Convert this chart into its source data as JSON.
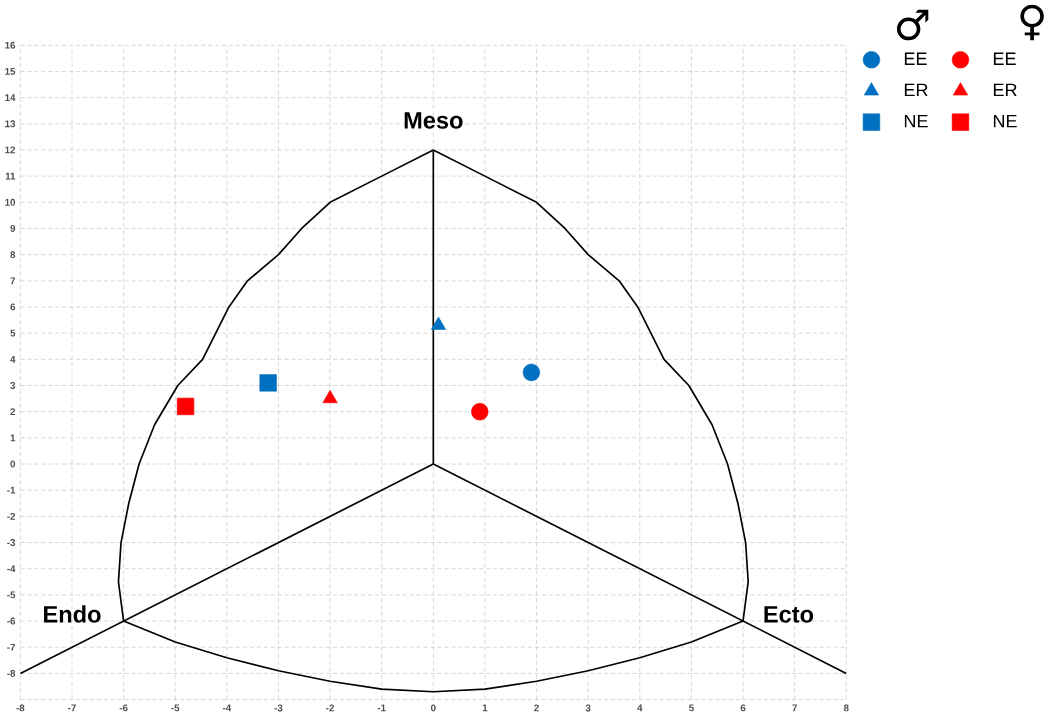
{
  "chart_data": {
    "type": "scatter",
    "xlim": [
      -8,
      8
    ],
    "ylim": [
      -9,
      16
    ],
    "xticks": [
      -8,
      -7,
      -6,
      -5,
      -4,
      -3,
      -2,
      -1,
      0,
      1,
      2,
      3,
      4,
      5,
      6,
      7,
      8
    ],
    "yticks": [
      {
        "value": -9,
        "label": null
      },
      -8,
      -7,
      -6,
      -5,
      -4,
      -3,
      -2,
      -1,
      0,
      1,
      2,
      3,
      4,
      5,
      6,
      7,
      8,
      9,
      10,
      11,
      12,
      13,
      14,
      15,
      16
    ],
    "grid": true,
    "legend": "top right",
    "annotations": [
      "♂",
      "♀",
      "Meso",
      "Endo",
      "Ecto"
    ],
    "series": [
      {
        "name": "EE",
        "color": "#0070c0",
        "marker": "circle",
        "x": [
          1.9
        ],
        "values": [
          3.5
        ]
      },
      {
        "name": "EE",
        "color": "#ff0000",
        "marker": "circle",
        "x": [
          0.9
        ],
        "values": [
          2.0
        ]
      },
      {
        "name": "ER",
        "color": "#0070c0",
        "marker": "triangle",
        "x": [
          0.1
        ],
        "values": [
          5.3
        ]
      },
      {
        "name": "ER",
        "color": "#ff0000",
        "marker": "triangle",
        "x": [
          -2.0
        ],
        "values": [
          2.5
        ]
      },
      {
        "name": "NE",
        "color": "#0070c0",
        "marker": "square",
        "x": [
          -3.2
        ],
        "values": [
          3.1
        ]
      },
      {
        "name": "NE",
        "color": "#ff0000",
        "marker": "square",
        "x": [
          -4.8
        ],
        "values": [
          2.2
        ]
      },
      {
        "type": "line",
        "color": "#000000",
        "marker": "none",
        "x": [
          0,
          0
        ],
        "values": [
          0,
          12
        ]
      },
      {
        "type": "line",
        "color": "#000000",
        "marker": "none",
        "x": [
          0,
          -8
        ],
        "values": [
          0,
          -8
        ]
      },
      {
        "type": "line",
        "color": "#000000",
        "marker": "none",
        "x": [
          0,
          8
        ],
        "values": [
          0,
          -8
        ]
      },
      {
        "type": "line",
        "color": "#000000",
        "marker": "none",
        "x": [
          -6,
          -6.1,
          -6.05,
          -5.9,
          -5.7,
          -5.4,
          -4.95,
          -4.47,
          -3.96,
          -3.6,
          -3.0,
          -2.55,
          -2.0,
          -1.0,
          0
        ],
        "values": [
          -6,
          -4.5,
          -3,
          -1.5,
          0,
          1.5,
          3,
          4,
          6,
          7,
          8,
          9,
          10,
          11,
          12
        ]
      },
      {
        "type": "line",
        "color": "#000000",
        "marker": "none",
        "x": [
          6,
          6.1,
          6.05,
          5.9,
          5.7,
          5.4,
          4.95,
          4.47,
          3.96,
          3.6,
          3.0,
          2.55,
          2.0,
          1.0,
          0
        ],
        "values": [
          -6,
          -4.5,
          -3,
          -1.5,
          0,
          1.5,
          3,
          4,
          6,
          7,
          8,
          9,
          10,
          11,
          12
        ]
      },
      {
        "type": "line",
        "color": "#000000",
        "marker": "none",
        "x": [
          -6,
          -5,
          -4,
          -3,
          -2,
          -1,
          0,
          1,
          2,
          3,
          4,
          5,
          6
        ],
        "values": [
          -6,
          -6.8,
          -7.4,
          -7.9,
          -8.3,
          -8.6,
          -8.7,
          -8.6,
          -8.3,
          -7.9,
          -7.4,
          -6.8,
          -6
        ]
      }
    ]
  }
}
